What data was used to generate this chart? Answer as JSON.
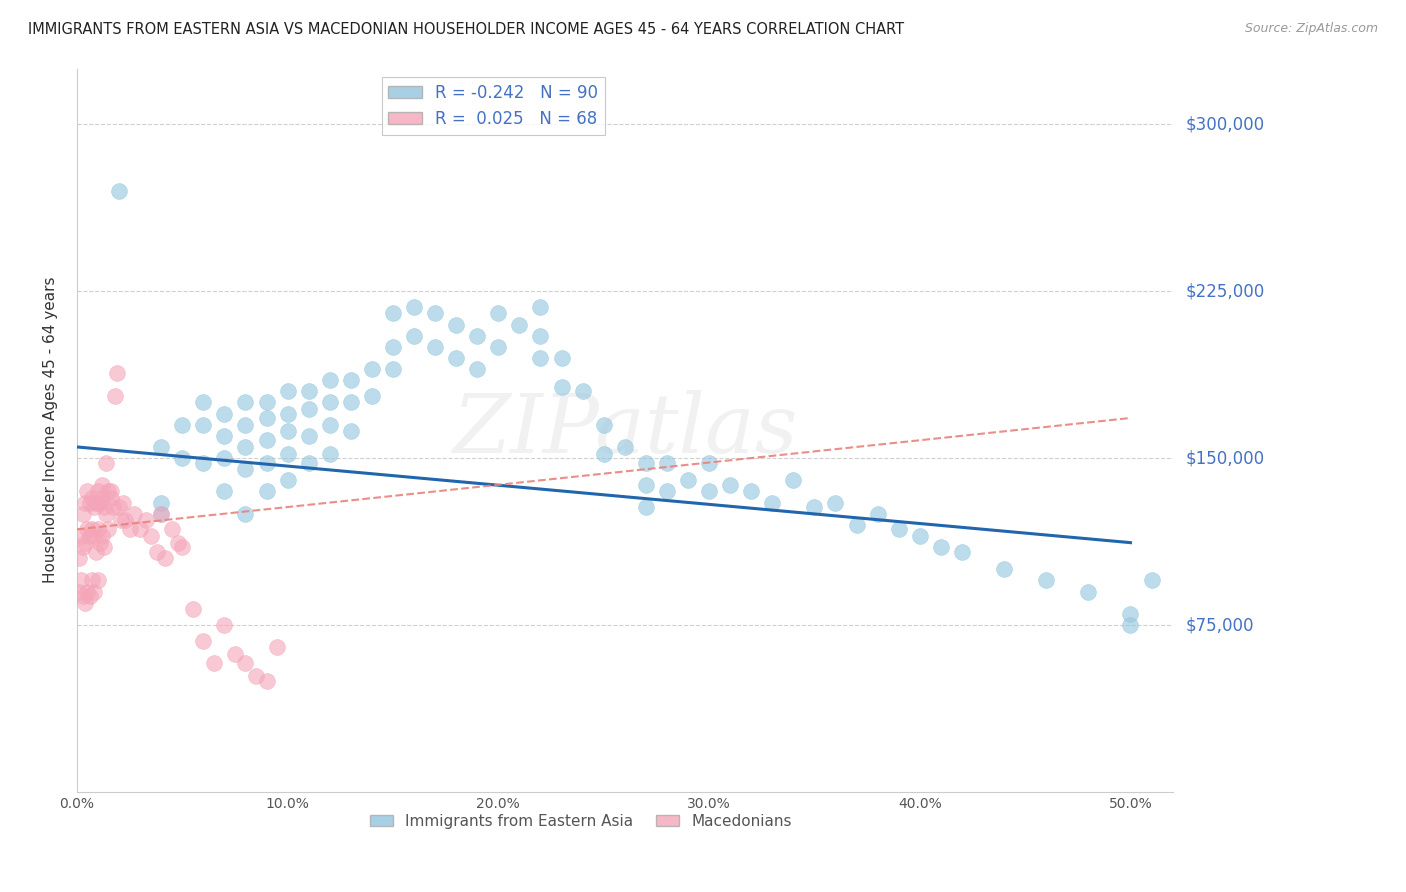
{
  "title": "IMMIGRANTS FROM EASTERN ASIA VS MACEDONIAN HOUSEHOLDER INCOME AGES 45 - 64 YEARS CORRELATION CHART",
  "source": "Source: ZipAtlas.com",
  "ylabel": "Householder Income Ages 45 - 64 years",
  "ytick_labels": [
    "$75,000",
    "$150,000",
    "$225,000",
    "$300,000"
  ],
  "ytick_values": [
    75000,
    150000,
    225000,
    300000
  ],
  "ylim": [
    0,
    325000
  ],
  "xlim": [
    0.0,
    0.52
  ],
  "xticks": [
    0.0,
    0.1,
    0.2,
    0.3,
    0.4,
    0.5
  ],
  "xtick_labels": [
    "0.0%",
    "10.0%",
    "20.0%",
    "30.0%",
    "40.0%",
    "50.0%"
  ],
  "legend_blue_r": "-0.242",
  "legend_blue_n": "90",
  "legend_pink_r": "0.025",
  "legend_pink_n": "68",
  "blue_color": "#92c5de",
  "pink_color": "#f4a5b8",
  "blue_line_color": "#2166ac",
  "pink_line_color": "#e8827a",
  "watermark": "ZIPatlas",
  "blue_trend_x0": 0.0,
  "blue_trend_y0": 155000,
  "blue_trend_x1": 0.5,
  "blue_trend_y1": 112000,
  "pink_trend_x0": 0.0,
  "pink_trend_y0": 118000,
  "pink_trend_x1": 0.1,
  "pink_trend_y1": 128000,
  "blue_scatter_x": [
    0.02,
    0.04,
    0.04,
    0.04,
    0.05,
    0.05,
    0.06,
    0.06,
    0.06,
    0.07,
    0.07,
    0.07,
    0.07,
    0.08,
    0.08,
    0.08,
    0.08,
    0.08,
    0.09,
    0.09,
    0.09,
    0.09,
    0.09,
    0.1,
    0.1,
    0.1,
    0.1,
    0.1,
    0.11,
    0.11,
    0.11,
    0.11,
    0.12,
    0.12,
    0.12,
    0.12,
    0.13,
    0.13,
    0.13,
    0.14,
    0.14,
    0.15,
    0.15,
    0.15,
    0.16,
    0.16,
    0.17,
    0.17,
    0.18,
    0.18,
    0.19,
    0.19,
    0.2,
    0.2,
    0.21,
    0.22,
    0.22,
    0.22,
    0.23,
    0.23,
    0.24,
    0.25,
    0.25,
    0.26,
    0.27,
    0.27,
    0.27,
    0.28,
    0.28,
    0.29,
    0.3,
    0.3,
    0.31,
    0.32,
    0.33,
    0.34,
    0.35,
    0.36,
    0.37,
    0.38,
    0.39,
    0.4,
    0.41,
    0.42,
    0.44,
    0.46,
    0.48,
    0.5,
    0.5,
    0.51
  ],
  "blue_scatter_y": [
    270000,
    155000,
    130000,
    125000,
    165000,
    150000,
    175000,
    165000,
    148000,
    170000,
    160000,
    150000,
    135000,
    175000,
    165000,
    155000,
    145000,
    125000,
    175000,
    168000,
    158000,
    148000,
    135000,
    180000,
    170000,
    162000,
    152000,
    140000,
    180000,
    172000,
    160000,
    148000,
    185000,
    175000,
    165000,
    152000,
    185000,
    175000,
    162000,
    190000,
    178000,
    200000,
    215000,
    190000,
    218000,
    205000,
    215000,
    200000,
    210000,
    195000,
    205000,
    190000,
    215000,
    200000,
    210000,
    218000,
    205000,
    195000,
    195000,
    182000,
    180000,
    165000,
    152000,
    155000,
    148000,
    138000,
    128000,
    148000,
    135000,
    140000,
    148000,
    135000,
    138000,
    135000,
    130000,
    140000,
    128000,
    130000,
    120000,
    125000,
    118000,
    115000,
    110000,
    108000,
    100000,
    95000,
    90000,
    75000,
    80000,
    95000
  ],
  "pink_scatter_x": [
    0.001,
    0.001,
    0.002,
    0.002,
    0.003,
    0.003,
    0.003,
    0.004,
    0.004,
    0.004,
    0.005,
    0.005,
    0.005,
    0.006,
    0.006,
    0.006,
    0.007,
    0.007,
    0.007,
    0.008,
    0.008,
    0.008,
    0.009,
    0.009,
    0.01,
    0.01,
    0.01,
    0.011,
    0.011,
    0.012,
    0.012,
    0.013,
    0.013,
    0.014,
    0.015,
    0.015,
    0.016,
    0.017,
    0.018,
    0.019,
    0.02,
    0.021,
    0.022,
    0.023,
    0.025,
    0.027,
    0.03,
    0.033,
    0.035,
    0.038,
    0.04,
    0.042,
    0.045,
    0.048,
    0.05,
    0.055,
    0.06,
    0.065,
    0.07,
    0.075,
    0.08,
    0.085,
    0.09,
    0.095,
    0.01,
    0.012,
    0.014,
    0.016
  ],
  "pink_scatter_y": [
    105000,
    90000,
    115000,
    95000,
    125000,
    110000,
    88000,
    130000,
    112000,
    85000,
    135000,
    118000,
    90000,
    130000,
    115000,
    88000,
    132000,
    118000,
    95000,
    128000,
    115000,
    90000,
    130000,
    108000,
    135000,
    118000,
    95000,
    130000,
    112000,
    132000,
    115000,
    128000,
    110000,
    125000,
    135000,
    118000,
    132000,
    128000,
    178000,
    188000,
    128000,
    122000,
    130000,
    122000,
    118000,
    125000,
    118000,
    122000,
    115000,
    108000,
    125000,
    105000,
    118000,
    112000,
    110000,
    82000,
    68000,
    58000,
    75000,
    62000,
    58000,
    52000,
    50000,
    65000,
    130000,
    138000,
    148000,
    135000
  ]
}
